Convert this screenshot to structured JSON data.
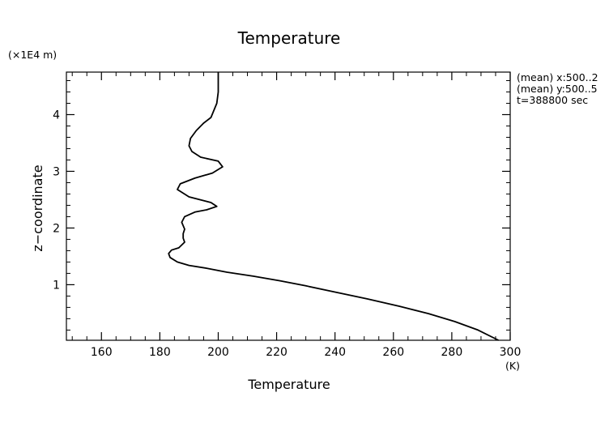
{
  "chart_data": {
    "type": "line",
    "title": "Temperature",
    "xlabel": "Temperature",
    "xunit": "(K)",
    "ylabel": "z−coordinate",
    "yunit": "(×1E4 m)",
    "xlim": [
      148,
      300
    ],
    "ylim": [
      0.02,
      4.75
    ],
    "xticks": [
      160,
      180,
      200,
      220,
      240,
      260,
      280,
      300
    ],
    "yticks": [
      1,
      2,
      3,
      4
    ],
    "annotations": [
      "(mean) x:500..2",
      "(mean) y:500..5",
      "t=388800 sec"
    ],
    "grid": false,
    "series": [
      {
        "color": "#000000",
        "x": [
          296,
          289,
          281,
          272,
          262,
          251,
          240,
          230,
          221,
          212,
          203,
          196,
          190,
          186,
          183.5,
          183,
          184,
          186.5,
          188.5,
          188,
          188,
          188.5,
          187.5,
          188.5,
          192,
          196,
          199.5,
          197.5,
          190,
          186,
          187,
          192,
          198,
          201.5,
          200,
          194,
          191,
          190,
          190.5,
          192.5,
          195,
          197.5,
          199.5,
          200,
          200,
          200,
          200
        ],
        "y": [
          0.02,
          0.2,
          0.35,
          0.49,
          0.62,
          0.75,
          0.87,
          0.98,
          1.07,
          1.15,
          1.22,
          1.29,
          1.34,
          1.4,
          1.48,
          1.55,
          1.61,
          1.65,
          1.75,
          1.82,
          1.9,
          1.98,
          2.1,
          2.2,
          2.28,
          2.32,
          2.38,
          2.45,
          2.55,
          2.68,
          2.78,
          2.88,
          2.97,
          3.08,
          3.18,
          3.25,
          3.35,
          3.45,
          3.58,
          3.72,
          3.85,
          3.95,
          4.2,
          4.4,
          4.55,
          4.65,
          4.75
        ]
      }
    ]
  }
}
